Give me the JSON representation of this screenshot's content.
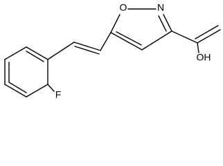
{
  "atoms": {
    "ring_oxygen": "O",
    "ring_nitrogen": "N",
    "hydroxyl": "OH",
    "fluorine": "F"
  }
}
